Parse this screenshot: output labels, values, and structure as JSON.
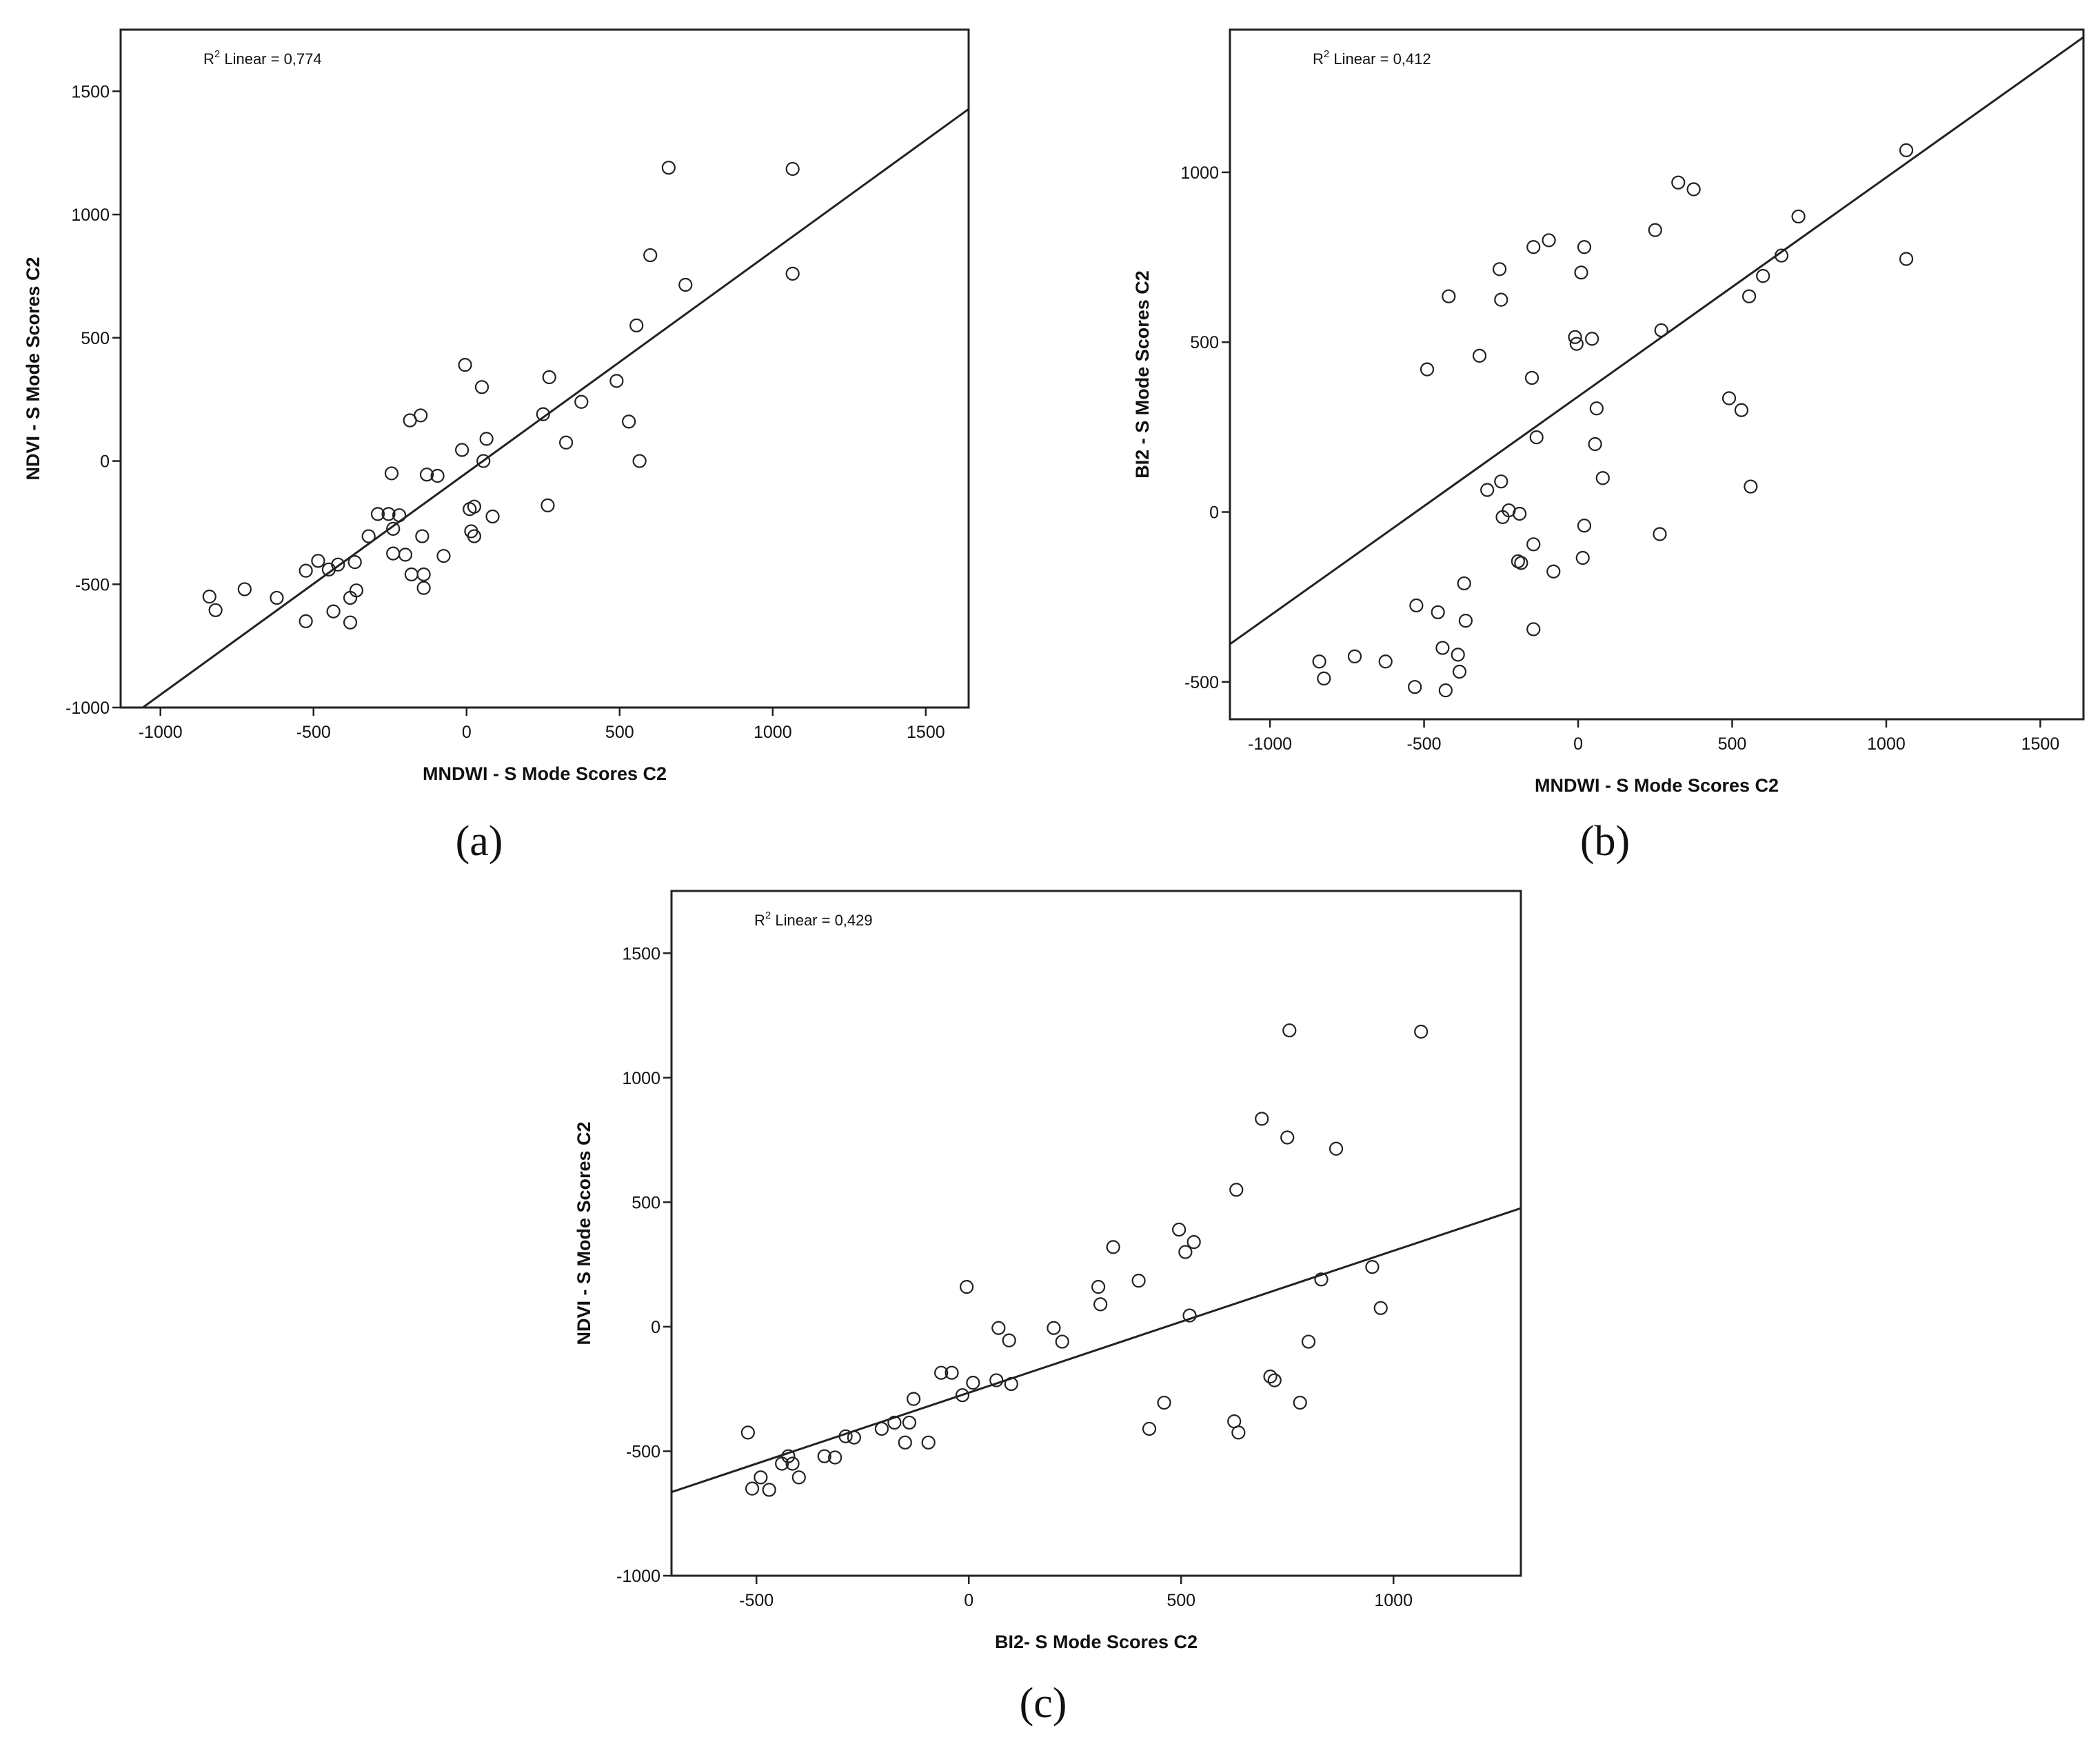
{
  "chart_data": [
    {
      "type": "scatter",
      "caption": "(a)",
      "xlabel": "MNDWI - S Mode Scores C2",
      "ylabel": "NDVI - S Mode Scores C2",
      "r2_prefix": "R",
      "r2_sup": "2",
      "r2_text": " Linear = 0,774",
      "xlim": [
        -1130,
        1640
      ],
      "ylim": [
        -1000,
        1750
      ],
      "xticks": [
        -1000,
        -500,
        0,
        500,
        1000,
        1500
      ],
      "yticks": [
        -1000,
        -500,
        0,
        500,
        1000,
        1500
      ],
      "fit": {
        "slope": 0.9,
        "intercept": -48
      },
      "points": [
        [
          -840,
          -550
        ],
        [
          -820,
          -605
        ],
        [
          -725,
          -520
        ],
        [
          -620,
          -555
        ],
        [
          -525,
          -445
        ],
        [
          -525,
          -650
        ],
        [
          -485,
          -405
        ],
        [
          -450,
          -440
        ],
        [
          -435,
          -610
        ],
        [
          -420,
          -420
        ],
        [
          -380,
          -555
        ],
        [
          -380,
          -655
        ],
        [
          -365,
          -410
        ],
        [
          -360,
          -525
        ],
        [
          -320,
          -305
        ],
        [
          -290,
          -215
        ],
        [
          -255,
          -215
        ],
        [
          -245,
          -50
        ],
        [
          -240,
          -375
        ],
        [
          -240,
          -275
        ],
        [
          -220,
          -220
        ],
        [
          -200,
          -380
        ],
        [
          -185,
          165
        ],
        [
          -180,
          -460
        ],
        [
          -150,
          185
        ],
        [
          -145,
          -305
        ],
        [
          -140,
          -460
        ],
        [
          -140,
          -515
        ],
        [
          -130,
          -55
        ],
        [
          -95,
          -60
        ],
        [
          -75,
          -385
        ],
        [
          -15,
          45
        ],
        [
          -5,
          390
        ],
        [
          10,
          -195
        ],
        [
          15,
          -285
        ],
        [
          25,
          -185
        ],
        [
          25,
          -305
        ],
        [
          50,
          300
        ],
        [
          55,
          0
        ],
        [
          65,
          90
        ],
        [
          85,
          -225
        ],
        [
          250,
          190
        ],
        [
          265,
          -180
        ],
        [
          270,
          340
        ],
        [
          325,
          75
        ],
        [
          375,
          240
        ],
        [
          490,
          325
        ],
        [
          530,
          160
        ],
        [
          555,
          550
        ],
        [
          565,
          0
        ],
        [
          600,
          835
        ],
        [
          660,
          1190
        ],
        [
          715,
          715
        ],
        [
          1065,
          1185
        ],
        [
          1065,
          760
        ]
      ]
    },
    {
      "type": "scatter",
      "caption": "(b)",
      "xlabel": "MNDWI - S Mode Scores C2",
      "ylabel": "BI2 - S Mode Scores C2",
      "r2_prefix": "R",
      "r2_sup": "2",
      "r2_text": " Linear = 0,412",
      "xlim": [
        -1130,
        1640
      ],
      "ylim": [
        -610,
        1420
      ],
      "xticks": [
        -1000,
        -500,
        0,
        500,
        1000,
        1500
      ],
      "yticks": [
        -500,
        0,
        500,
        1000
      ],
      "fit": {
        "slope": 0.645,
        "intercept": 340
      },
      "points": [
        [
          -840,
          -440
        ],
        [
          -825,
          -490
        ],
        [
          -725,
          -425
        ],
        [
          -625,
          -440
        ],
        [
          -530,
          -515
        ],
        [
          -525,
          -275
        ],
        [
          -490,
          420
        ],
        [
          -455,
          -295
        ],
        [
          -440,
          -400
        ],
        [
          -430,
          -525
        ],
        [
          -420,
          635
        ],
        [
          -390,
          -420
        ],
        [
          -385,
          -470
        ],
        [
          -370,
          -210
        ],
        [
          -365,
          -320
        ],
        [
          -320,
          460
        ],
        [
          -295,
          65
        ],
        [
          -250,
          90
        ],
        [
          -250,
          625
        ],
        [
          -255,
          715
        ],
        [
          -245,
          -15
        ],
        [
          -225,
          5
        ],
        [
          -195,
          -145
        ],
        [
          -190,
          -5
        ],
        [
          -185,
          -150
        ],
        [
          -150,
          395
        ],
        [
          -145,
          -95
        ],
        [
          -145,
          -345
        ],
        [
          -145,
          780
        ],
        [
          -135,
          220
        ],
        [
          -95,
          800
        ],
        [
          -80,
          -175
        ],
        [
          -10,
          515
        ],
        [
          -5,
          495
        ],
        [
          10,
          705
        ],
        [
          15,
          -135
        ],
        [
          20,
          780
        ],
        [
          20,
          -40
        ],
        [
          45,
          510
        ],
        [
          55,
          200
        ],
        [
          60,
          305
        ],
        [
          80,
          100
        ],
        [
          250,
          830
        ],
        [
          265,
          -65
        ],
        [
          270,
          535
        ],
        [
          325,
          970
        ],
        [
          375,
          950
        ],
        [
          490,
          335
        ],
        [
          530,
          300
        ],
        [
          555,
          635
        ],
        [
          560,
          75
        ],
        [
          600,
          695
        ],
        [
          660,
          755
        ],
        [
          715,
          870
        ],
        [
          1065,
          1065
        ],
        [
          1065,
          745
        ]
      ]
    },
    {
      "type": "scatter",
      "caption": "(c)",
      "xlabel": "BI2- S Mode Scores C2",
      "ylabel": "NDVI - S Mode Scores C2",
      "r2_prefix": "R",
      "r2_sup": "2",
      "r2_text": " Linear = 0,429",
      "xlim": [
        -700,
        1300
      ],
      "ylim": [
        -1000,
        1750
      ],
      "xticks": [
        -500,
        0,
        500,
        1000
      ],
      "yticks": [
        -1000,
        -500,
        0,
        500,
        1000,
        1500
      ],
      "fit": {
        "slope": 0.57,
        "intercept": -265
      },
      "points": [
        [
          -520,
          -425
        ],
        [
          -510,
          -650
        ],
        [
          -490,
          -605
        ],
        [
          -470,
          -655
        ],
        [
          -440,
          -550
        ],
        [
          -425,
          -520
        ],
        [
          -415,
          -550
        ],
        [
          -400,
          -605
        ],
        [
          -340,
          -520
        ],
        [
          -315,
          -525
        ],
        [
          -290,
          -440
        ],
        [
          -270,
          -445
        ],
        [
          -205,
          -410
        ],
        [
          -175,
          -385
        ],
        [
          -150,
          -465
        ],
        [
          -140,
          -385
        ],
        [
          -130,
          -290
        ],
        [
          -95,
          -465
        ],
        [
          -65,
          -185
        ],
        [
          -40,
          -185
        ],
        [
          -15,
          -275
        ],
        [
          -5,
          160
        ],
        [
          10,
          -225
        ],
        [
          65,
          -215
        ],
        [
          70,
          -5
        ],
        [
          95,
          -55
        ],
        [
          100,
          -230
        ],
        [
          200,
          -5
        ],
        [
          220,
          -60
        ],
        [
          305,
          160
        ],
        [
          310,
          90
        ],
        [
          340,
          320
        ],
        [
          400,
          185
        ],
        [
          425,
          -410
        ],
        [
          460,
          -305
        ],
        [
          495,
          390
        ],
        [
          510,
          300
        ],
        [
          520,
          45
        ],
        [
          530,
          340
        ],
        [
          625,
          -380
        ],
        [
          630,
          550
        ],
        [
          635,
          -425
        ],
        [
          690,
          835
        ],
        [
          710,
          -200
        ],
        [
          720,
          -215
        ],
        [
          750,
          760
        ],
        [
          755,
          1190
        ],
        [
          780,
          -305
        ],
        [
          800,
          -60
        ],
        [
          830,
          190
        ],
        [
          865,
          715
        ],
        [
          950,
          240
        ],
        [
          970,
          75
        ],
        [
          1065,
          1185
        ]
      ]
    }
  ]
}
